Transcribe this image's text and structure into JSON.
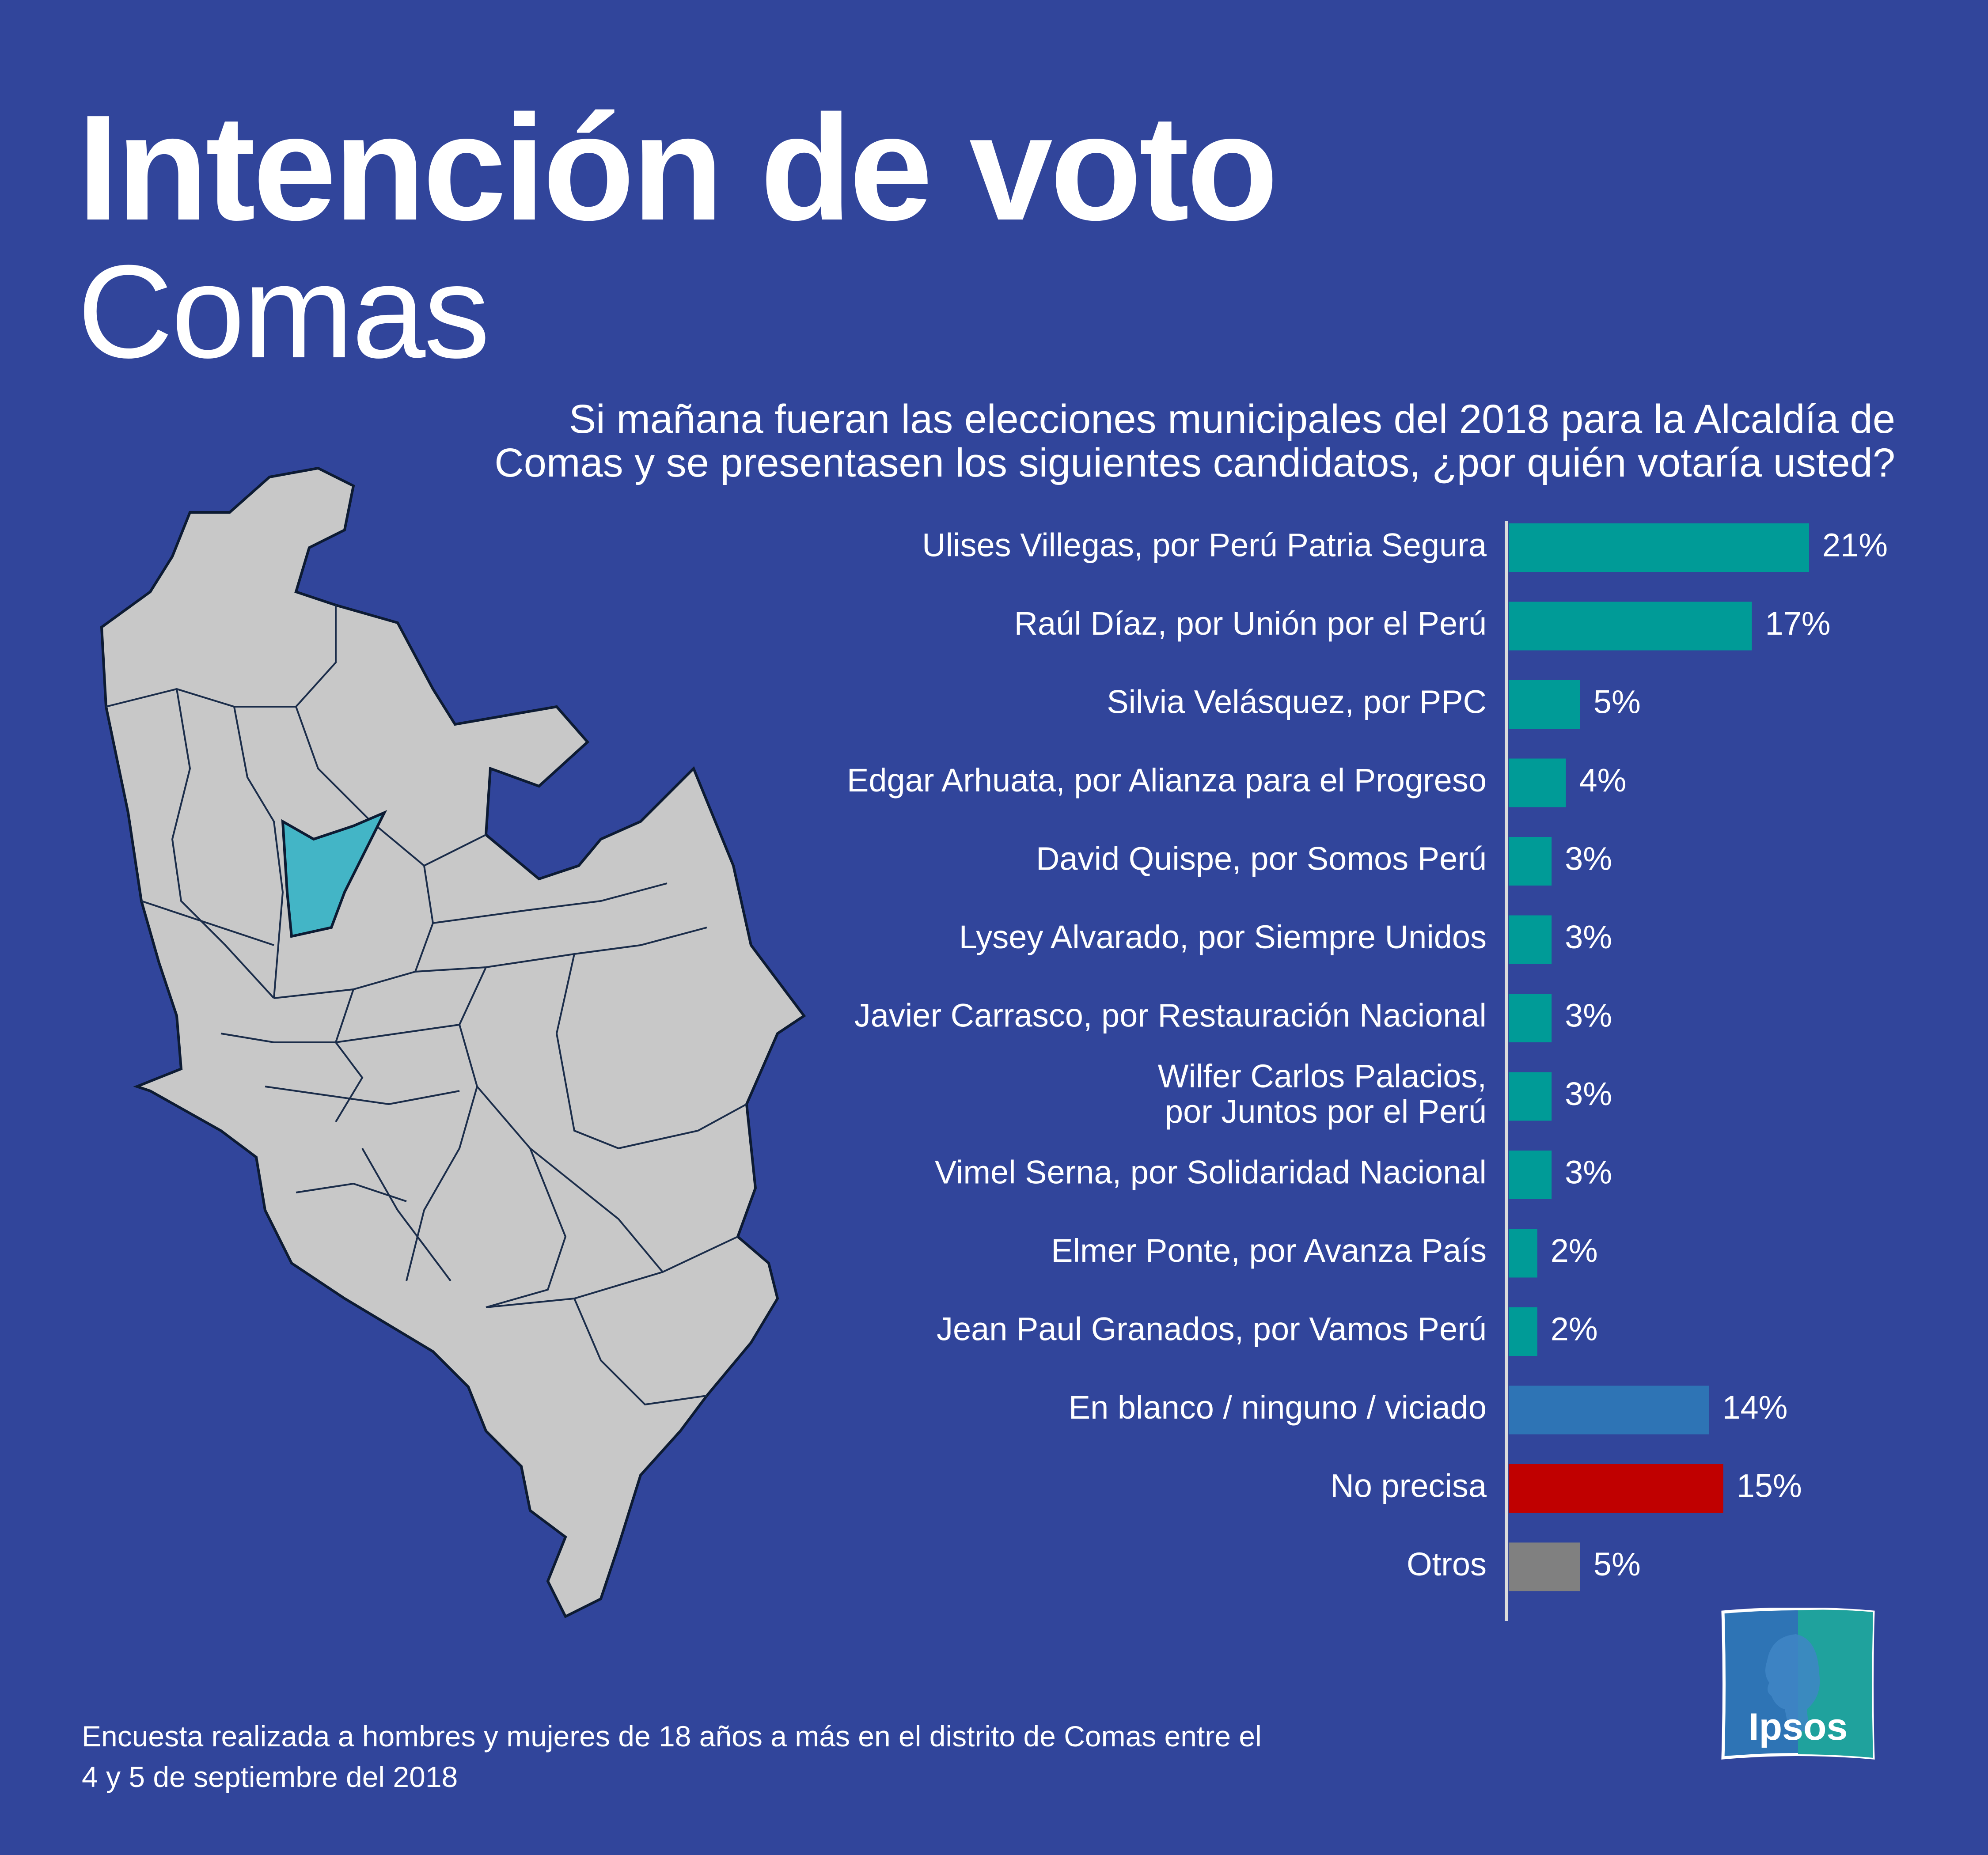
{
  "header": {
    "title": "Intención de voto",
    "subtitle": "Comas"
  },
  "question": "Si mañana fueran las elecciones municipales del 2018 para la Alcaldía de\nComas y se presentasen los siguientes candidatos, ¿por quién votaría usted?",
  "footnote": "Encuesta realizada a hombres y mujeres de 18 años a más en el distrito de Comas entre el\n4 y 5 de septiembre del 2018",
  "logo": {
    "text": "Ipsos"
  },
  "colors": {
    "background": "#31459b",
    "candidate": "#009b97",
    "blank": "#2e74b5",
    "undecided": "#c00000",
    "others": "#808080",
    "map_fill": "#c8c8c8",
    "map_highlight": "#43b5c6",
    "logo_blue": "#2e74b5",
    "logo_teal": "#1fa29d"
  },
  "map": {
    "highlighted_district": "Comas"
  },
  "chart_data": {
    "type": "bar",
    "orientation": "horizontal",
    "unit": "%",
    "xlim": [
      0,
      21
    ],
    "categories": [
      [
        "Ulises Villegas, por Perú Patria Segura"
      ],
      [
        "Raúl Díaz, por Unión por el Perú"
      ],
      [
        "Silvia Velásquez, por PPC"
      ],
      [
        "Edgar Arhuata, por Alianza para el Progreso"
      ],
      [
        "David Quispe, por Somos Perú"
      ],
      [
        "Lysey Alvarado, por Siempre Unidos"
      ],
      [
        "Javier Carrasco, por Restauración Nacional"
      ],
      [
        "Wilfer Carlos Palacios,",
        "por Juntos por el Perú"
      ],
      [
        "Vimel Serna, por Solidaridad Nacional"
      ],
      [
        "Elmer Ponte, por Avanza País"
      ],
      [
        "Jean Paul Granados, por Vamos Perú"
      ],
      [
        "En blanco / ninguno / viciado"
      ],
      [
        "No precisa"
      ],
      [
        "Otros"
      ]
    ],
    "values": [
      21,
      17,
      5,
      4,
      3,
      3,
      3,
      3,
      3,
      2,
      2,
      14,
      15,
      5
    ],
    "value_labels": [
      "21%",
      "17%",
      "5%",
      "4%",
      "3%",
      "3%",
      "3%",
      "3%",
      "3%",
      "2%",
      "2%",
      "14%",
      "15%",
      "5%"
    ],
    "bar_colors": [
      "candidate",
      "candidate",
      "candidate",
      "candidate",
      "candidate",
      "candidate",
      "candidate",
      "candidate",
      "candidate",
      "candidate",
      "candidate",
      "blank",
      "undecided",
      "others"
    ]
  }
}
